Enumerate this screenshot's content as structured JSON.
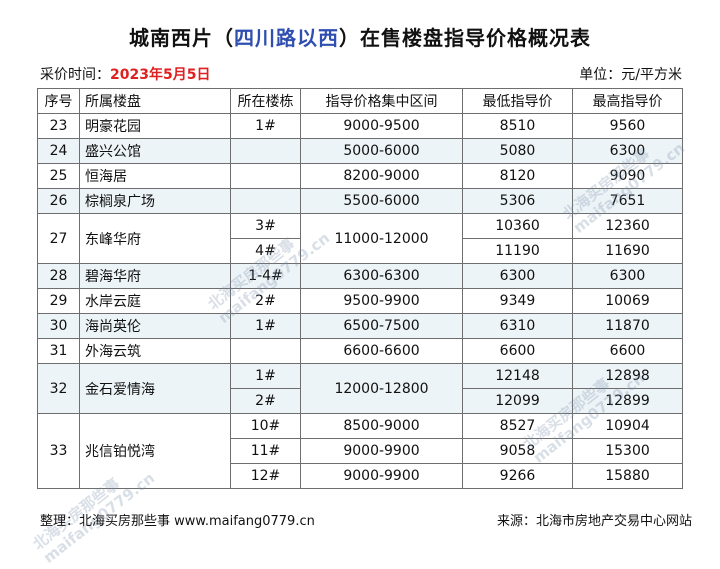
{
  "title": {
    "part1": "城南西片（",
    "highlight": "四川路以西",
    "part2": "）在售楼盘指导价格概况表"
  },
  "meta": {
    "date_label": "采价时间：",
    "date_value": "2023年5月5日",
    "unit": "单位：元/平方米"
  },
  "table": {
    "headers": [
      "序号",
      "所属楼盘",
      "所在楼栋",
      "指导价格集中区间",
      "最低指导价",
      "最高指导价"
    ],
    "rows": [
      {
        "no": "23",
        "project": "明豪花园",
        "building": "1#",
        "range": "9000-9500",
        "min": "8510",
        "max": "9560"
      },
      {
        "no": "24",
        "project": "盛兴公馆",
        "building": "",
        "range": "5000-6000",
        "min": "5080",
        "max": "6300"
      },
      {
        "no": "25",
        "project": "恒海居",
        "building": "",
        "range": "8200-9000",
        "min": "8120",
        "max": "9090"
      },
      {
        "no": "26",
        "project": "棕榈泉广场",
        "building": "",
        "range": "5500-6000",
        "min": "5306",
        "max": "7651"
      },
      {
        "no": "27",
        "project": "东峰华府",
        "buildings": [
          "3#",
          "4#"
        ],
        "range": "11000-12000",
        "mins": [
          "10360",
          "11190"
        ],
        "maxs": [
          "12360",
          "11690"
        ]
      },
      {
        "no": "28",
        "project": "碧海华府",
        "building": "1-4#",
        "range": "6300-6300",
        "min": "6300",
        "max": "6300"
      },
      {
        "no": "29",
        "project": "水岸云庭",
        "building": "2#",
        "range": "9500-9900",
        "min": "9349",
        "max": "10069"
      },
      {
        "no": "30",
        "project": "海尚英伦",
        "building": "1#",
        "range": "6500-7500",
        "min": "6310",
        "max": "11870"
      },
      {
        "no": "31",
        "project": "外海云筑",
        "building": "",
        "range": "6600-6600",
        "min": "6600",
        "max": "6600"
      },
      {
        "no": "32",
        "project": "金石爱情海",
        "buildings": [
          "1#",
          "2#"
        ],
        "range": "12000-12800",
        "mins": [
          "12148",
          "12099"
        ],
        "maxs": [
          "12898",
          "12899"
        ]
      },
      {
        "no": "33",
        "project": "兆信铂悦湾",
        "buildings": [
          "10#",
          "11#",
          "12#"
        ],
        "ranges": [
          "8500-9000",
          "9000-9900",
          "9000-9900"
        ],
        "mins": [
          "8527",
          "9058",
          "9266"
        ],
        "maxs": [
          "10904",
          "15300",
          "15880"
        ]
      }
    ]
  },
  "watermark": {
    "line1": "北海买房那些事",
    "line2": "maifang0779.cn"
  },
  "footer": {
    "left": "整理：北海买房那些事 www.maifang0779.cn",
    "right": "来源：北海市房地产交易中心网站"
  }
}
